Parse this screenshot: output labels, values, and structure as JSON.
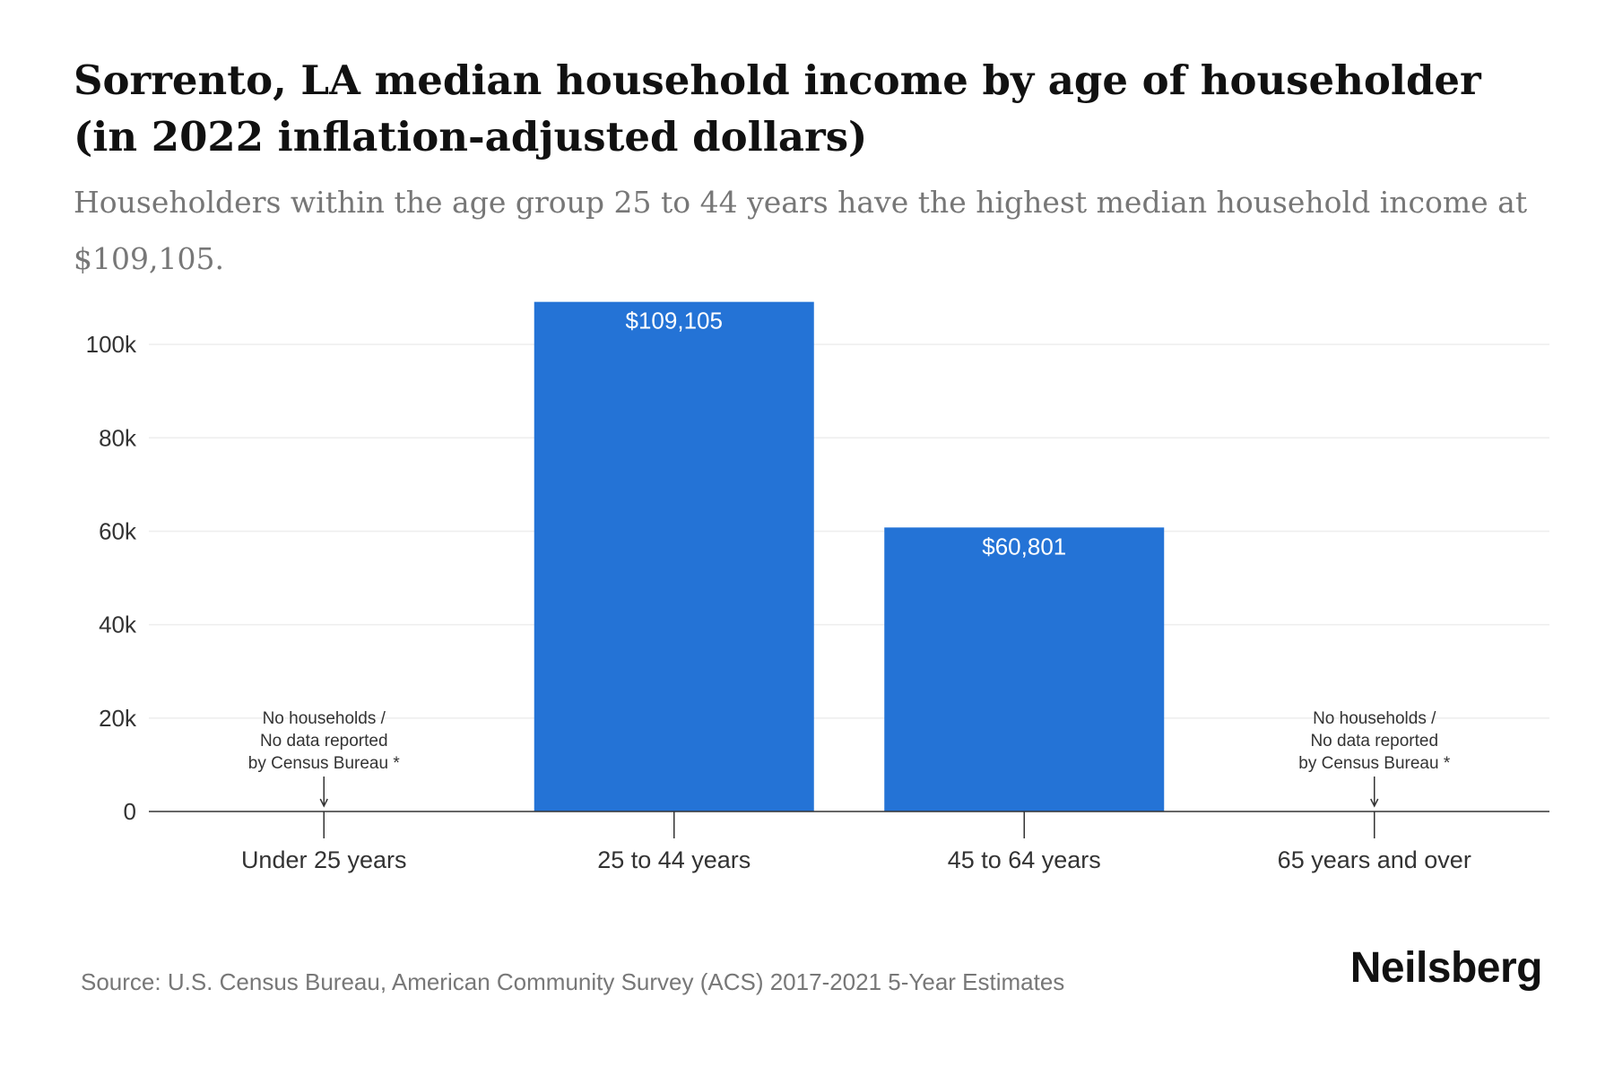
{
  "title": "Sorrento, LA median household income by age of householder (in 2022 inflation-adjusted dollars)",
  "subtitle": "Householders within the age group 25 to 44 years have the highest median household income at $109,105.",
  "source": "Source: U.S. Census Bureau, American Community Survey (ACS) 2017-2021 5-Year Estimates",
  "brand": "Neilsberg",
  "colors": {
    "bar": "#2473d6",
    "grid": "#eeeeee",
    "axis": "#333333",
    "text": "#333333"
  },
  "chart_data": {
    "type": "bar",
    "title": "Sorrento, LA median household income by age of householder (in 2022 inflation-adjusted dollars)",
    "xlabel": "",
    "ylabel": "",
    "ylim": [
      0,
      110000
    ],
    "yticks": [
      0,
      20000,
      40000,
      60000,
      80000,
      100000
    ],
    "ytick_labels": [
      "0",
      "20k",
      "40k",
      "60k",
      "80k",
      "100k"
    ],
    "grid": true,
    "categories": [
      "Under 25 years",
      "25 to 44 years",
      "45 to 64 years",
      "65 years and over"
    ],
    "values": [
      null,
      109105,
      60801,
      null
    ],
    "value_labels": [
      "",
      "$109,105",
      "$60,801",
      ""
    ],
    "no_data_note": [
      "No households /",
      "No data reported",
      "by Census Bureau *"
    ]
  }
}
